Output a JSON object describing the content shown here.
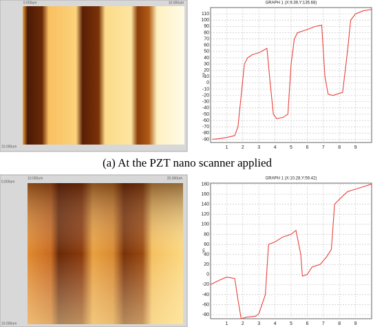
{
  "chart_data": [
    {
      "type": "line",
      "title": "GRAPH 1 (X:9.39,Y:135.68)",
      "y_label": "nm",
      "x": [
        0.1,
        0.5,
        1.0,
        1.5,
        1.7,
        1.9,
        2.1,
        2.3,
        2.6,
        3.0,
        3.5,
        3.7,
        3.9,
        4.1,
        4.5,
        4.8,
        5.0,
        5.2,
        5.4,
        6.0,
        6.5,
        6.9,
        7.1,
        7.3,
        7.6,
        8.2,
        8.5,
        8.7,
        9.0,
        9.5,
        10.0
      ],
      "values": [
        -90,
        -89,
        -87,
        -84,
        -70,
        -20,
        30,
        40,
        45,
        48,
        55,
        0,
        -50,
        -57,
        -55,
        -50,
        30,
        70,
        80,
        85,
        90,
        92,
        10,
        -18,
        -20,
        -15,
        50,
        100,
        110,
        115,
        117
      ],
      "color": "#e8403a",
      "xlim": [
        0,
        10
      ],
      "xticks": [
        1,
        2,
        3,
        4,
        5,
        6,
        7,
        8,
        9
      ],
      "ylim": [
        -95,
        120
      ],
      "yticks": [
        110,
        100,
        90,
        80,
        70,
        60,
        50,
        40,
        30,
        20,
        10,
        0,
        -10,
        -20,
        -30,
        -40,
        -50,
        -60,
        -70,
        -80,
        -90
      ],
      "grid": true
    },
    {
      "type": "line",
      "title": "GRAPH 1 (X:10.28,Y:59.42)",
      "y_label": "nm",
      "x": [
        0.0,
        0.5,
        1.0,
        1.5,
        1.7,
        1.9,
        2.2,
        2.8,
        3.0,
        3.4,
        3.6,
        4.0,
        4.5,
        5.0,
        5.3,
        5.6,
        5.7,
        6.0,
        6.3,
        6.8,
        7.2,
        7.5,
        7.7,
        8.0,
        8.5,
        9.0,
        9.5,
        10.0
      ],
      "values": [
        -20,
        -12,
        -5,
        -8,
        -50,
        -88,
        -85,
        -83,
        -78,
        -40,
        60,
        65,
        75,
        80,
        88,
        40,
        -3,
        0,
        15,
        20,
        35,
        50,
        140,
        150,
        165,
        170,
        175,
        180
      ],
      "color": "#e8403a",
      "xlim": [
        0,
        10
      ],
      "xticks": [
        1,
        2,
        3,
        4,
        5,
        6,
        7,
        8,
        9
      ],
      "ylim": [
        -88,
        182
      ],
      "yticks": [
        180,
        160,
        140,
        120,
        100,
        80,
        60,
        40,
        20,
        0,
        -20,
        -40,
        -60,
        -80
      ],
      "grid": true
    }
  ],
  "figure": {
    "images": [
      {
        "labels": [
          "0.000um",
          "10.000um",
          "10.000um"
        ]
      },
      {
        "labels": [
          "10.000um",
          "20.000um",
          "0.000um",
          "10.000um"
        ]
      }
    ],
    "caption": "(a) At the PZT nano scanner applied"
  }
}
